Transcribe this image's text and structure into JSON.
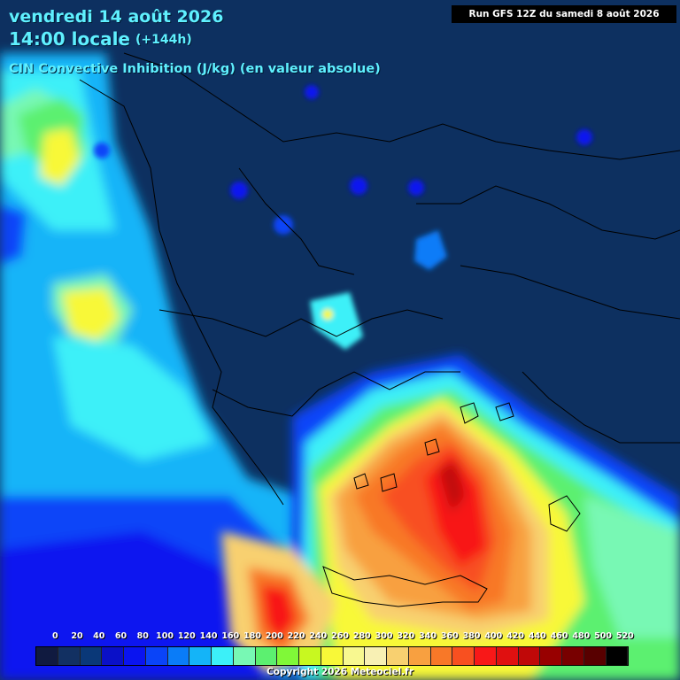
{
  "header": {
    "date": "vendredi 14 août 2026",
    "time": "14:00 locale",
    "offset": "(+144h)",
    "parameter": "CIN Convective Inhibition (J/kg) (en valeur absolue)",
    "run": "Run GFS 12Z du samedi 8 août 2026"
  },
  "legend": {
    "labels": [
      "0",
      "20",
      "40",
      "60",
      "80",
      "100",
      "120",
      "140",
      "160",
      "180",
      "200",
      "220",
      "240",
      "260",
      "280",
      "300",
      "320",
      "340",
      "360",
      "380",
      "400",
      "420",
      "440",
      "460",
      "480",
      "500",
      "520"
    ],
    "colors": [
      "#101a40",
      "#123062",
      "#0a3878",
      "#0a10c8",
      "#0a14f0",
      "#0a44f8",
      "#0a7cf8",
      "#14b4f8",
      "#3cf0f8",
      "#78f8b4",
      "#5cf070",
      "#80f838",
      "#c8f820",
      "#f8f838",
      "#f8f890",
      "#f8f0b4",
      "#f8d070",
      "#f8a040",
      "#f87828",
      "#f85020",
      "#f81818",
      "#e01010",
      "#c00808",
      "#980000",
      "#780000",
      "#580000",
      "#000000"
    ]
  },
  "copyright": "Copyright 2026 Meteociel.fr",
  "map": {
    "region": "Greece / Aegean Sea",
    "field": "CIN",
    "colors": {
      "background": "#0d3060",
      "borders": "#000000",
      "title_text": "#5ff0ff"
    }
  }
}
